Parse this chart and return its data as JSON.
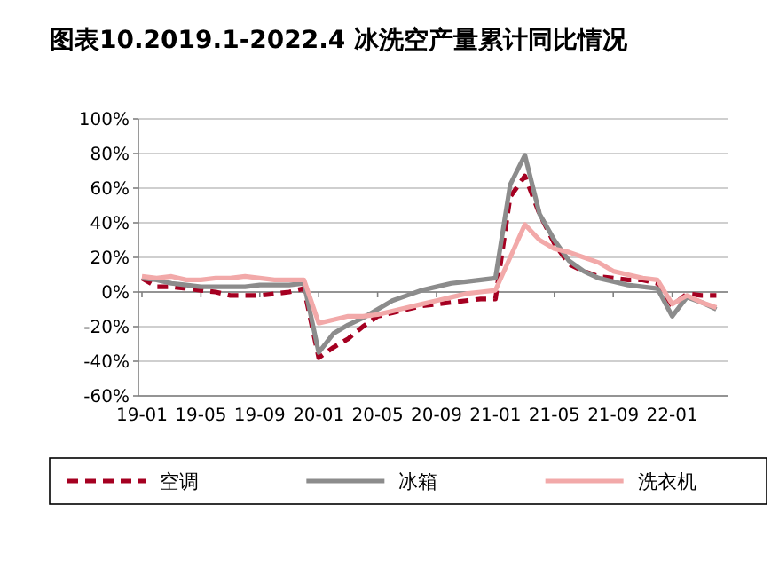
{
  "chart_data": {
    "type": "line",
    "title": "图表10.2019.1-2022.4 冰洗空产量累计同比情况",
    "categories": [
      "19-01",
      null,
      null,
      null,
      "19-05",
      null,
      null,
      null,
      "19-09",
      null,
      null,
      null,
      "20-01",
      null,
      null,
      null,
      "20-05",
      null,
      null,
      null,
      "20-09",
      null,
      null,
      null,
      "21-01",
      null,
      null,
      null,
      "21-05",
      null,
      null,
      null,
      "21-09",
      null,
      null,
      null,
      "22-01",
      null,
      null,
      null
    ],
    "series": [
      {
        "name": "空调",
        "color": "#a50021",
        "line_style": "dashed",
        "values": [
          8,
          3,
          3,
          2,
          1,
          0,
          -2,
          -2,
          -2,
          -1,
          0,
          2,
          -38,
          -32,
          -27,
          -20,
          -14,
          -12,
          -10,
          -8,
          -7,
          -6,
          -5,
          -4,
          -4,
          55,
          67,
          45,
          28,
          16,
          12,
          9,
          8,
          7,
          7,
          5,
          -8,
          -1,
          -2,
          -2
        ]
      },
      {
        "name": "冰箱",
        "color": "#8c8c8c",
        "line_style": "solid",
        "values": [
          8,
          7,
          5,
          4,
          3,
          3,
          3,
          3,
          4,
          4,
          4,
          5,
          -35,
          -24,
          -19,
          -15,
          -10,
          -5,
          -2,
          1,
          3,
          5,
          6,
          7,
          8,
          62,
          79,
          45,
          30,
          18,
          12,
          8,
          6,
          4,
          3,
          2,
          -14,
          -3,
          -6,
          -10
        ]
      },
      {
        "name": "洗衣机",
        "color": "#f2a9a9",
        "line_style": "solid",
        "values": [
          9,
          8,
          9,
          7,
          7,
          8,
          8,
          9,
          8,
          7,
          7,
          7,
          -18,
          -16,
          -14,
          -14,
          -13,
          -11,
          -9,
          -7,
          -5,
          -3,
          -1,
          0,
          1,
          20,
          39,
          30,
          25,
          23,
          20,
          17,
          12,
          10,
          8,
          7,
          -7,
          -2,
          -6,
          -9
        ]
      }
    ],
    "ylim": [
      -60,
      100
    ],
    "yticks": [
      {
        "value": -60,
        "label": "-60%"
      },
      {
        "value": -40,
        "label": "-40%"
      },
      {
        "value": -20,
        "label": "-20%"
      },
      {
        "value": 0,
        "label": "0%"
      },
      {
        "value": 20,
        "label": "20%"
      },
      {
        "value": 40,
        "label": "40%"
      },
      {
        "value": 60,
        "label": "60%"
      },
      {
        "value": 80,
        "label": "80%"
      },
      {
        "value": 100,
        "label": "100%"
      }
    ],
    "grid": "y",
    "legend": "bottom",
    "marker": "none"
  }
}
